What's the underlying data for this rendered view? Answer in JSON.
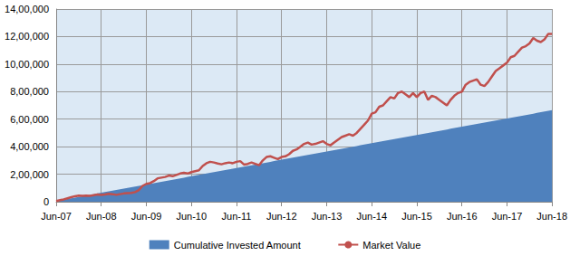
{
  "chart_data": {
    "type": "line",
    "categories": [
      "Jun-07",
      null,
      null,
      null,
      null,
      null,
      null,
      null,
      null,
      null,
      null,
      null,
      "Jun-08",
      null,
      null,
      null,
      null,
      null,
      null,
      null,
      null,
      null,
      null,
      null,
      "Jun-09",
      null,
      null,
      null,
      null,
      null,
      null,
      null,
      null,
      null,
      null,
      null,
      "Jun-10",
      null,
      null,
      null,
      null,
      null,
      null,
      null,
      null,
      null,
      null,
      null,
      "Jun-11",
      null,
      null,
      null,
      null,
      null,
      null,
      null,
      null,
      null,
      null,
      null,
      "Jun-12",
      null,
      null,
      null,
      null,
      null,
      null,
      null,
      null,
      null,
      null,
      null,
      "Jun-13",
      null,
      null,
      null,
      null,
      null,
      null,
      null,
      null,
      null,
      null,
      null,
      "Jun-14",
      null,
      null,
      null,
      null,
      null,
      null,
      null,
      null,
      null,
      null,
      null,
      "Jun-15",
      null,
      null,
      null,
      null,
      null,
      null,
      null,
      null,
      null,
      null,
      null,
      "Jun-16",
      null,
      null,
      null,
      null,
      null,
      null,
      null,
      null,
      null,
      null,
      null,
      "Jun-17",
      null,
      null,
      null,
      null,
      null,
      null,
      null,
      null,
      null,
      null,
      null,
      "Jun-18"
    ],
    "series": [
      {
        "name": "Cumulative Invested Amount",
        "type": "area",
        "color": "#4f81bd",
        "values": [
          5000,
          10000,
          15000,
          20000,
          25000,
          30000,
          35000,
          40000,
          45000,
          50000,
          55000,
          60000,
          65000,
          70000,
          75000,
          80000,
          85000,
          90000,
          95000,
          100000,
          105000,
          110000,
          115000,
          120000,
          125000,
          130000,
          135000,
          140000,
          145000,
          150000,
          155000,
          160000,
          165000,
          170000,
          175000,
          180000,
          185000,
          190000,
          195000,
          200000,
          205000,
          210000,
          215000,
          220000,
          225000,
          230000,
          235000,
          240000,
          245000,
          250000,
          255000,
          260000,
          265000,
          270000,
          275000,
          280000,
          285000,
          290000,
          295000,
          300000,
          305000,
          310000,
          315000,
          320000,
          325000,
          330000,
          335000,
          340000,
          345000,
          350000,
          355000,
          360000,
          365000,
          370000,
          375000,
          380000,
          385000,
          390000,
          395000,
          400000,
          405000,
          410000,
          415000,
          420000,
          425000,
          430000,
          435000,
          440000,
          445000,
          450000,
          455000,
          460000,
          465000,
          470000,
          475000,
          480000,
          485000,
          490000,
          495000,
          500000,
          505000,
          510000,
          515000,
          520000,
          525000,
          530000,
          535000,
          540000,
          545000,
          550000,
          555000,
          560000,
          565000,
          570000,
          575000,
          580000,
          585000,
          590000,
          595000,
          600000,
          605000,
          610000,
          615000,
          620000,
          625000,
          630000,
          635000,
          640000,
          645000,
          650000,
          655000,
          660000,
          665000
        ]
      },
      {
        "name": "Market Value",
        "type": "line",
        "color": "#c0504d",
        "values": [
          5000,
          11000,
          17000,
          25000,
          33000,
          40000,
          45000,
          42000,
          44000,
          43000,
          48000,
          52000,
          50000,
          52000,
          57000,
          55000,
          50000,
          55000,
          60000,
          62000,
          64000,
          70000,
          85000,
          115000,
          130000,
          135000,
          150000,
          170000,
          175000,
          180000,
          190000,
          185000,
          195000,
          205000,
          210000,
          205000,
          215000,
          222000,
          228000,
          260000,
          280000,
          290000,
          285000,
          278000,
          272000,
          280000,
          285000,
          280000,
          290000,
          295000,
          270000,
          275000,
          285000,
          275000,
          265000,
          300000,
          325000,
          330000,
          320000,
          310000,
          325000,
          330000,
          345000,
          370000,
          380000,
          400000,
          420000,
          430000,
          415000,
          420000,
          430000,
          440000,
          420000,
          410000,
          430000,
          450000,
          470000,
          480000,
          490000,
          480000,
          500000,
          530000,
          560000,
          590000,
          640000,
          650000,
          690000,
          700000,
          730000,
          760000,
          750000,
          790000,
          800000,
          780000,
          760000,
          790000,
          760000,
          790000,
          800000,
          740000,
          770000,
          760000,
          740000,
          720000,
          700000,
          740000,
          770000,
          790000,
          800000,
          850000,
          870000,
          880000,
          890000,
          850000,
          840000,
          870000,
          910000,
          950000,
          970000,
          990000,
          1010000,
          1050000,
          1060000,
          1090000,
          1120000,
          1130000,
          1150000,
          1190000,
          1170000,
          1160000,
          1180000,
          1220000,
          1220000
        ]
      }
    ],
    "ylim": [
      0,
      1400000
    ],
    "yticks": [
      0,
      {
        "value": 200000,
        "label": "2,00,000"
      },
      {
        "value": 400000,
        "label": "4,00,000"
      },
      {
        "value": 600000,
        "label": "6,00,000"
      },
      {
        "value": 800000,
        "label": "8,00,000"
      },
      {
        "value": 1000000,
        "label": "10,00,000"
      },
      {
        "value": 1200000,
        "label": "12,00,000"
      },
      {
        "value": 1400000,
        "label": "14,00,000"
      }
    ],
    "grid": true,
    "legend": "bottom"
  }
}
